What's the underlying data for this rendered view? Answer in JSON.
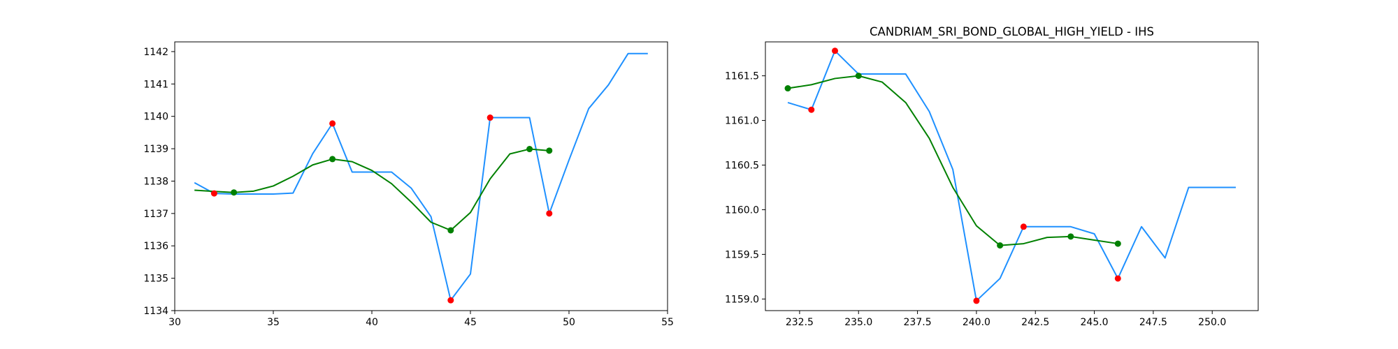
{
  "colors": {
    "price_line": "#1e90ff",
    "smooth_line": "#008000",
    "red_marker": "#ff0000",
    "green_marker": "#008000",
    "axis": "#000000"
  },
  "chart_data": [
    {
      "type": "line",
      "title": "",
      "xlabel": "",
      "ylabel": "",
      "xlim": [
        30.0,
        55.0
      ],
      "ylim": [
        1134.0,
        1142.3
      ],
      "xticks": [
        30,
        35,
        40,
        45,
        50,
        55
      ],
      "xtick_labels": [
        "30",
        "35",
        "40",
        "45",
        "50",
        "55"
      ],
      "yticks": [
        1134,
        1135,
        1136,
        1137,
        1138,
        1139,
        1140,
        1141,
        1142
      ],
      "ytick_labels": [
        "1134",
        "1135",
        "1136",
        "1137",
        "1138",
        "1139",
        "1140",
        "1141",
        "1142"
      ],
      "grid": false,
      "series": [
        {
          "x": [
            31,
            32,
            33,
            34,
            35,
            36,
            37,
            38,
            39,
            40,
            41,
            42,
            43,
            44,
            45,
            46,
            47,
            48,
            49,
            50,
            51,
            52,
            53,
            54
          ],
          "y": [
            1137.95,
            1137.62,
            1137.6,
            1137.6,
            1137.6,
            1137.63,
            1138.85,
            1139.78,
            1138.28,
            1138.28,
            1138.28,
            1137.78,
            1136.9,
            1134.32,
            1135.13,
            1139.96,
            1139.96,
            1139.96,
            1137.0,
            1138.65,
            1140.24,
            1140.97,
            1141.94,
            1141.94
          ]
        },
        {
          "x": [
            31,
            32,
            33,
            34,
            35,
            36,
            37,
            38,
            39,
            40,
            41,
            42,
            43,
            44,
            45,
            46,
            47,
            48,
            49
          ],
          "y": [
            1137.72,
            1137.68,
            1137.65,
            1137.69,
            1137.85,
            1138.15,
            1138.5,
            1138.68,
            1138.6,
            1138.33,
            1137.92,
            1137.35,
            1136.73,
            1136.48,
            1137.03,
            1138.07,
            1138.84,
            1138.99,
            1138.94
          ]
        }
      ],
      "markers": {
        "red": {
          "x": [
            32,
            38,
            44,
            46,
            49
          ],
          "y": [
            1137.62,
            1139.78,
            1134.32,
            1139.96,
            1137.0
          ]
        },
        "green": {
          "x": [
            33,
            38,
            44,
            48,
            49
          ],
          "y": [
            1137.65,
            1138.68,
            1136.48,
            1138.99,
            1138.94
          ]
        }
      }
    },
    {
      "type": "line",
      "title": "CANDRIAM_SRI_BOND_GLOBAL_HIGH_YIELD - IHS",
      "xlabel": "",
      "ylabel": "",
      "xlim": [
        231.05,
        251.95
      ],
      "ylim": [
        1158.87,
        1161.88
      ],
      "xticks": [
        232.5,
        235.0,
        237.5,
        240.0,
        242.5,
        245.0,
        247.5,
        250.0
      ],
      "xtick_labels": [
        "232.5",
        "235.0",
        "237.5",
        "240.0",
        "242.5",
        "245.0",
        "247.5",
        "250.0"
      ],
      "yticks": [
        1159.0,
        1159.5,
        1160.0,
        1160.5,
        1161.0,
        1161.5
      ],
      "ytick_labels": [
        "1159.0",
        "1159.5",
        "1160.0",
        "1160.5",
        "1161.0",
        "1161.5"
      ],
      "grid": false,
      "series": [
        {
          "x": [
            232,
            233,
            234,
            235,
            236,
            237,
            238,
            239,
            240,
            241,
            242,
            243,
            244,
            245,
            246,
            247,
            248,
            249,
            250,
            251
          ],
          "y": [
            1161.2,
            1161.12,
            1161.78,
            1161.52,
            1161.52,
            1161.52,
            1161.1,
            1160.45,
            1158.98,
            1159.23,
            1159.81,
            1159.81,
            1159.81,
            1159.73,
            1159.23,
            1159.81,
            1159.46,
            1160.25,
            1160.25,
            1160.25
          ]
        },
        {
          "x": [
            232,
            233,
            234,
            235,
            236,
            237,
            238,
            239,
            240,
            241,
            242,
            243,
            244,
            245,
            246
          ],
          "y": [
            1161.36,
            1161.4,
            1161.47,
            1161.5,
            1161.43,
            1161.2,
            1160.8,
            1160.25,
            1159.82,
            1159.6,
            1159.62,
            1159.69,
            1159.7,
            1159.66,
            1159.62
          ]
        }
      ],
      "markers": {
        "red": {
          "x": [
            233,
            234,
            240,
            242,
            246
          ],
          "y": [
            1161.12,
            1161.78,
            1158.98,
            1159.81,
            1159.23
          ]
        },
        "green": {
          "x": [
            232,
            235,
            241,
            244,
            246
          ],
          "y": [
            1161.36,
            1161.5,
            1159.6,
            1159.7,
            1159.62
          ]
        }
      }
    }
  ]
}
